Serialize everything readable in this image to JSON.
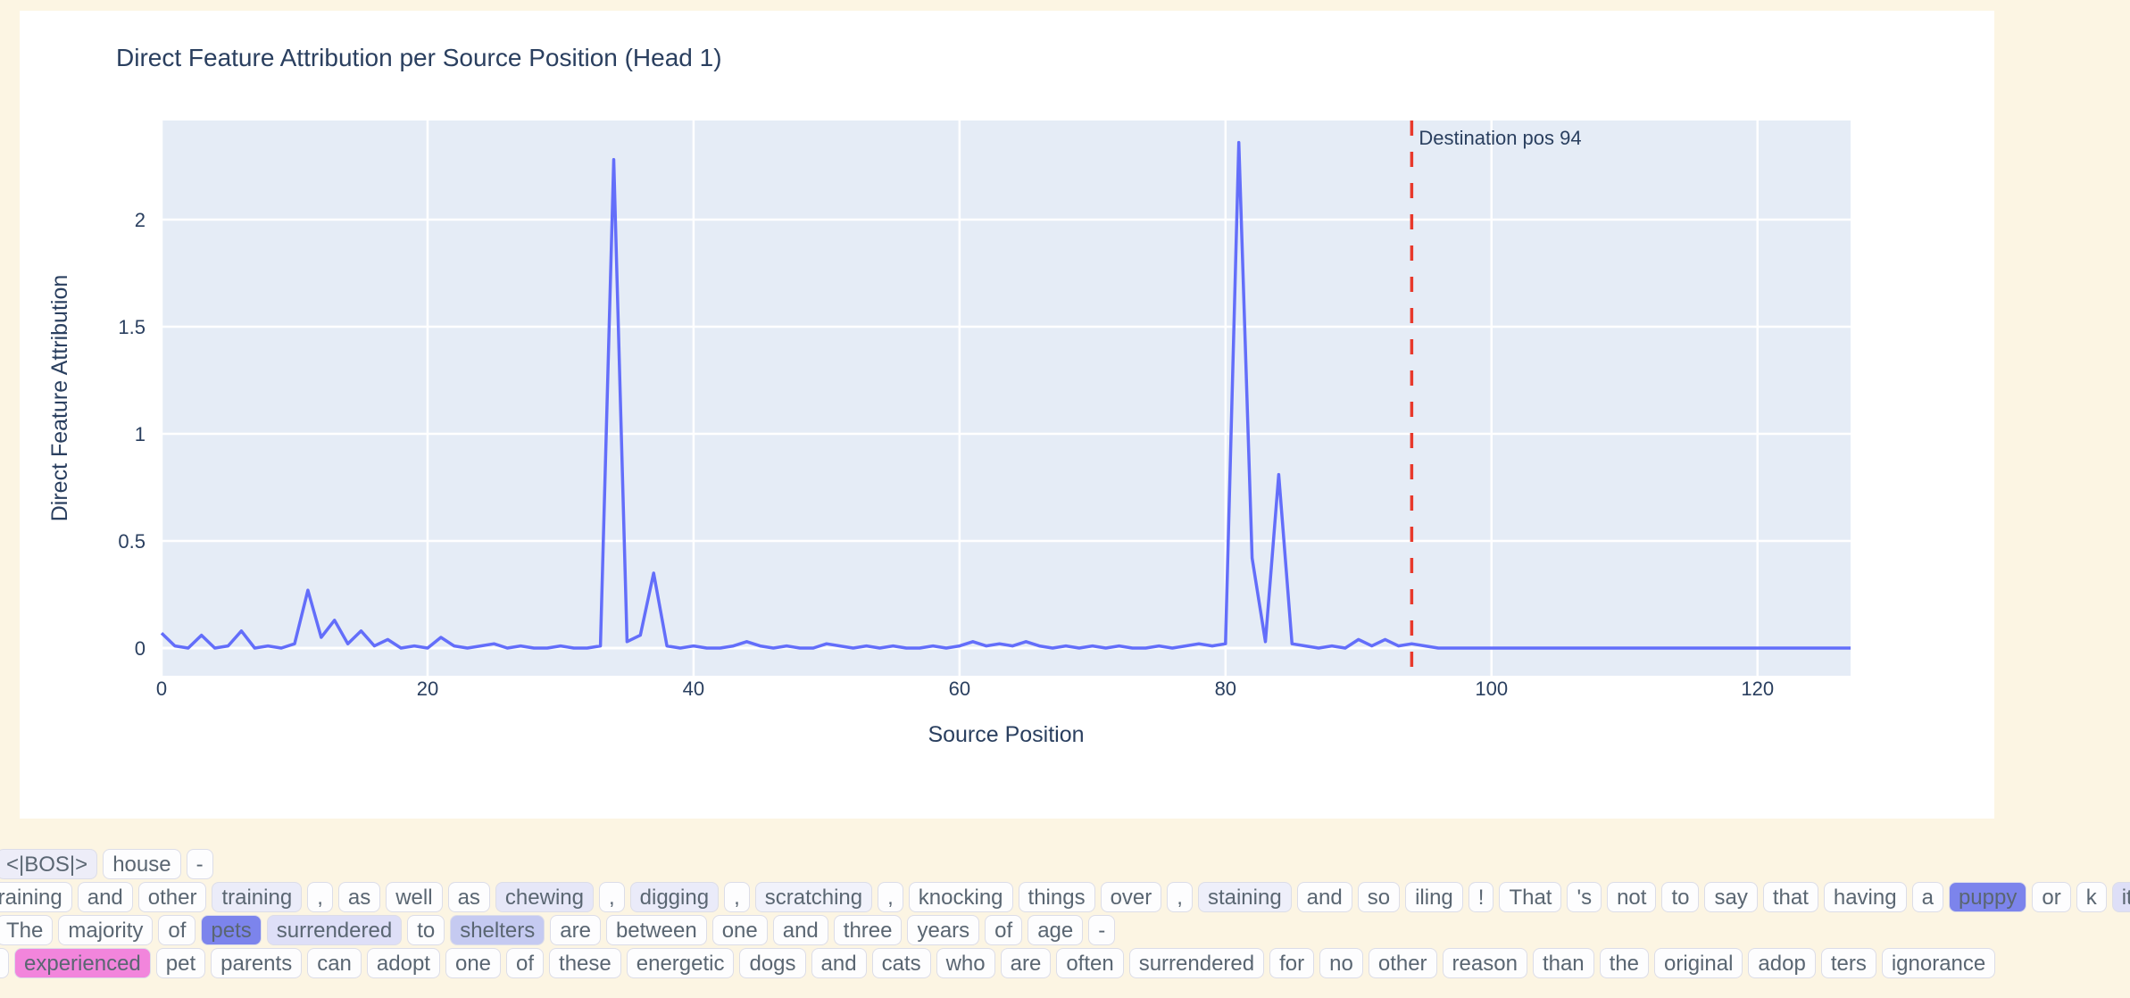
{
  "chart_data": {
    "type": "line",
    "title": "Direct Feature Attribution per Source Position (Head 1)",
    "xlabel": "Source Position",
    "ylabel": "Direct Feature Attribution",
    "x_ticks": [
      0,
      20,
      40,
      60,
      80,
      100,
      120
    ],
    "y_ticks": [
      0,
      0.5,
      1,
      1.5,
      2
    ],
    "xlim": [
      0,
      127
    ],
    "ylim": [
      -0.13,
      2.46
    ],
    "grid": true,
    "legend": "none",
    "plot_bg": "#e5ecf6",
    "grid_color": "#ffffff",
    "line_color": "#636efa",
    "x_start": 0,
    "y": [
      0.07,
      0.01,
      0.0,
      0.06,
      0.0,
      0.01,
      0.08,
      0.0,
      0.01,
      0.0,
      0.02,
      0.27,
      0.05,
      0.13,
      0.02,
      0.08,
      0.01,
      0.04,
      0.0,
      0.01,
      0.0,
      0.05,
      0.01,
      0.0,
      0.01,
      0.02,
      0.0,
      0.01,
      0.0,
      0.0,
      0.01,
      0.0,
      0.0,
      0.01,
      2.28,
      0.03,
      0.06,
      0.35,
      0.01,
      0.0,
      0.01,
      0.0,
      0.0,
      0.01,
      0.03,
      0.01,
      0.0,
      0.01,
      0.0,
      0.0,
      0.02,
      0.01,
      0.0,
      0.01,
      0.0,
      0.01,
      0.0,
      0.0,
      0.01,
      0.0,
      0.01,
      0.03,
      0.01,
      0.02,
      0.01,
      0.03,
      0.01,
      0.0,
      0.01,
      0.0,
      0.01,
      0.0,
      0.01,
      0.0,
      0.0,
      0.01,
      0.0,
      0.01,
      0.02,
      0.01,
      0.02,
      2.36,
      0.42,
      0.03,
      0.81,
      0.02,
      0.01,
      0.0,
      0.01,
      0.0,
      0.04,
      0.01,
      0.04,
      0.01,
      0.02,
      0.01,
      0.0,
      0.0,
      0.0,
      0.0,
      0.0,
      0.0,
      0.0,
      0.0,
      0.0,
      0.0,
      0.0,
      0.0,
      0.0,
      0.0,
      0.0,
      0.0,
      0.0,
      0.0,
      0.0,
      0.0,
      0.0,
      0.0,
      0.0,
      0.0,
      0.0,
      0.0,
      0.0,
      0.0,
      0.0,
      0.0,
      0.0,
      0.0
    ],
    "vline": {
      "x": 94,
      "label": "Destination pos 94",
      "color": "#e8392b",
      "style": "dashed"
    }
  },
  "tokens": {
    "text_color": "#5a6672",
    "highlight_colors": {
      "strong_purple": "#7c84ec",
      "medium_lavender": "#c5caf1",
      "light_lavender": "#dedff7",
      "faint_lavender": "#e6e7f8",
      "pink": "#f285dc"
    },
    "rows": [
      {
        "items": [
          {
            "t": "<|BOS|>",
            "bg": "#ededf8"
          },
          {
            "t": "house"
          },
          {
            "t": "-"
          }
        ]
      },
      {
        "items": [
          {
            "t": "training"
          },
          {
            "t": "and"
          },
          {
            "t": "other"
          },
          {
            "t": "training",
            "bg": "#ebecf9"
          },
          {
            "t": ","
          },
          {
            "t": "as"
          },
          {
            "t": "well"
          },
          {
            "t": "as"
          },
          {
            "t": "chewing",
            "bg": "#e6e7f8"
          },
          {
            "t": ","
          },
          {
            "t": "digging",
            "bg": "#eaebf9"
          },
          {
            "t": ","
          },
          {
            "t": "scratching",
            "bg": "#f1f2fb"
          },
          {
            "t": ","
          },
          {
            "t": "knocking"
          },
          {
            "t": "things"
          },
          {
            "t": "over"
          },
          {
            "t": ","
          },
          {
            "t": "staining",
            "bg": "#eeeffa"
          },
          {
            "t": "and"
          },
          {
            "t": "so"
          },
          {
            "t": "iling"
          },
          {
            "t": "!"
          },
          {
            "t": "That"
          },
          {
            "t": "'s"
          },
          {
            "t": "not"
          },
          {
            "t": "to"
          },
          {
            "t": "say"
          },
          {
            "t": "that"
          },
          {
            "t": "having"
          },
          {
            "t": "a"
          },
          {
            "t": "puppy",
            "bg": "#7c84ec"
          },
          {
            "t": "or"
          },
          {
            "t": "k"
          },
          {
            "t": "itten",
            "bg": "#dedff7"
          }
        ]
      },
      {
        "items": [
          {
            "t": "The"
          },
          {
            "t": "majority"
          },
          {
            "t": "of"
          },
          {
            "t": "pets",
            "bg": "#7c84ec"
          },
          {
            "t": "surrendered",
            "bg": "#dedff7"
          },
          {
            "t": "to"
          },
          {
            "t": "shelters",
            "bg": "#c5caf1"
          },
          {
            "t": "are"
          },
          {
            "t": "between"
          },
          {
            "t": "one"
          },
          {
            "t": "and"
          },
          {
            "t": "three"
          },
          {
            "t": "years"
          },
          {
            "t": "of"
          },
          {
            "t": "age"
          },
          {
            "t": "-"
          }
        ]
      },
      {
        "items": [
          {
            "t": "-"
          },
          {
            "t": "experienced",
            "bg": "#f285dc"
          },
          {
            "t": "pet"
          },
          {
            "t": "parents"
          },
          {
            "t": "can"
          },
          {
            "t": "adopt"
          },
          {
            "t": "one"
          },
          {
            "t": "of"
          },
          {
            "t": "these"
          },
          {
            "t": "energetic"
          },
          {
            "t": "dogs"
          },
          {
            "t": "and"
          },
          {
            "t": "cats"
          },
          {
            "t": "who"
          },
          {
            "t": "are"
          },
          {
            "t": "often"
          },
          {
            "t": "surrendered"
          },
          {
            "t": "for"
          },
          {
            "t": "no"
          },
          {
            "t": "other"
          },
          {
            "t": "reason"
          },
          {
            "t": "than"
          },
          {
            "t": "the"
          },
          {
            "t": "original"
          },
          {
            "t": "adop"
          },
          {
            "t": "ters"
          },
          {
            "t": "ignorance"
          }
        ]
      }
    ]
  }
}
